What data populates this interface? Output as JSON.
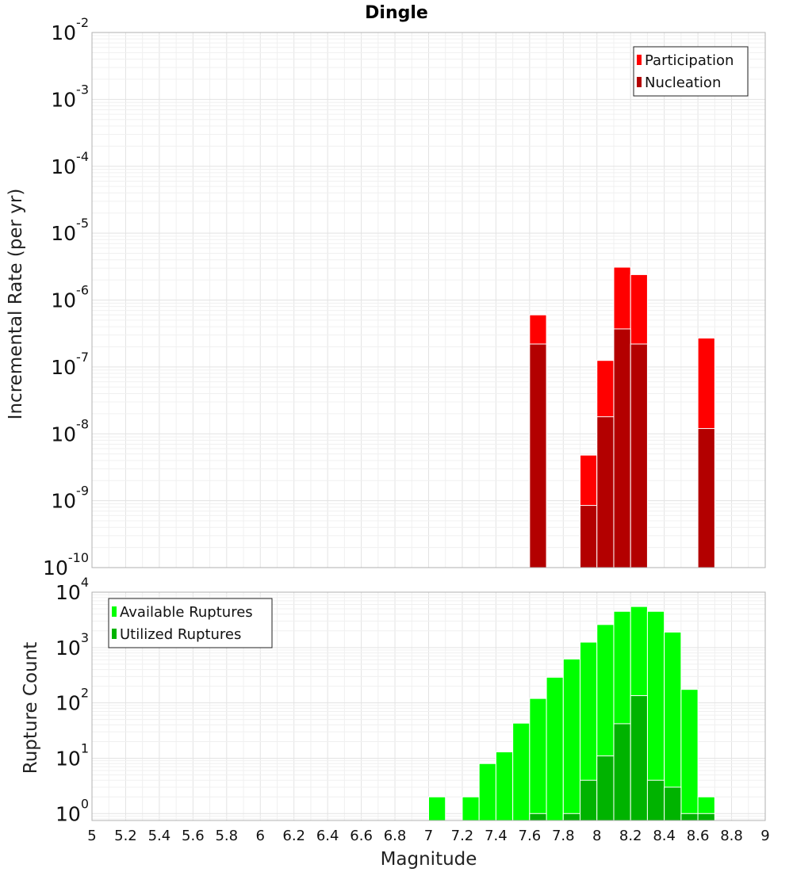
{
  "chart_data": [
    {
      "type": "bar",
      "title": "Dingle",
      "xlabel": "",
      "ylabel": "Incremental Rate (per yr)",
      "yscale": "log",
      "ylim": [
        1e-10,
        0.01
      ],
      "xlim": [
        5,
        9
      ],
      "bin_width": 0.1,
      "y_ticks": [
        {
          "base": "10",
          "exp": "-2"
        },
        {
          "base": "10",
          "exp": "-3"
        },
        {
          "base": "10",
          "exp": "-4"
        },
        {
          "base": "10",
          "exp": "-5"
        },
        {
          "base": "10",
          "exp": "-6"
        },
        {
          "base": "10",
          "exp": "-7"
        },
        {
          "base": "10",
          "exp": "-8"
        },
        {
          "base": "10",
          "exp": "-9"
        },
        {
          "base": "10",
          "exp": "-10"
        }
      ],
      "legend_position": "top-right",
      "series": [
        {
          "name": "Participation",
          "color": "#ff0000",
          "x": [
            7.65,
            7.95,
            8.05,
            8.15,
            8.25,
            8.65
          ],
          "values": [
            6e-07,
            4.8e-09,
            1.25e-07,
            3.1e-06,
            2.4e-06,
            2.7e-07
          ]
        },
        {
          "name": "Nucleation",
          "color": "#b30000",
          "x": [
            7.65,
            7.95,
            8.05,
            8.15,
            8.25,
            8.65
          ],
          "values": [
            2.2e-07,
            8.5e-10,
            1.8e-08,
            3.7e-07,
            2.2e-07,
            1.2e-08
          ]
        }
      ]
    },
    {
      "type": "bar",
      "title": "",
      "xlabel": "Magnitude",
      "ylabel": "Rupture Count",
      "yscale": "log",
      "ylim": [
        0.75,
        10000
      ],
      "xlim": [
        5,
        9
      ],
      "bin_width": 0.1,
      "y_ticks": [
        {
          "base": "10",
          "exp": "4",
          "value": 10000
        },
        {
          "base": "10",
          "exp": "3",
          "value": 1000
        },
        {
          "base": "10",
          "exp": "2",
          "value": 100
        },
        {
          "base": "10",
          "exp": "1",
          "value": 10
        },
        {
          "base": "10",
          "exp": "0",
          "value": 1
        }
      ],
      "x_ticks": [
        "5",
        "5.2",
        "5.4",
        "5.6",
        "5.8",
        "6",
        "6.2",
        "6.4",
        "6.6",
        "6.8",
        "7",
        "7.2",
        "7.4",
        "7.6",
        "7.8",
        "8",
        "8.2",
        "8.4",
        "8.6",
        "8.8",
        "9"
      ],
      "legend_position": "top-left",
      "series": [
        {
          "name": "Available Ruptures",
          "color": "#00ff00",
          "x": [
            7.05,
            7.25,
            7.35,
            7.45,
            7.55,
            7.65,
            7.75,
            7.85,
            7.95,
            8.05,
            8.15,
            8.25,
            8.35,
            8.45,
            8.55,
            8.65
          ],
          "values": [
            2,
            2,
            8,
            13,
            43,
            120,
            290,
            620,
            1250,
            2600,
            4500,
            5500,
            4500,
            1900,
            175,
            2
          ]
        },
        {
          "name": "Utilized Ruptures",
          "color": "#00b300",
          "x": [
            7.65,
            7.85,
            7.95,
            8.05,
            8.15,
            8.25,
            8.35,
            8.45,
            8.55,
            8.65
          ],
          "values": [
            1,
            1,
            4,
            11,
            42,
            135,
            4,
            3,
            1,
            1
          ]
        }
      ]
    }
  ]
}
